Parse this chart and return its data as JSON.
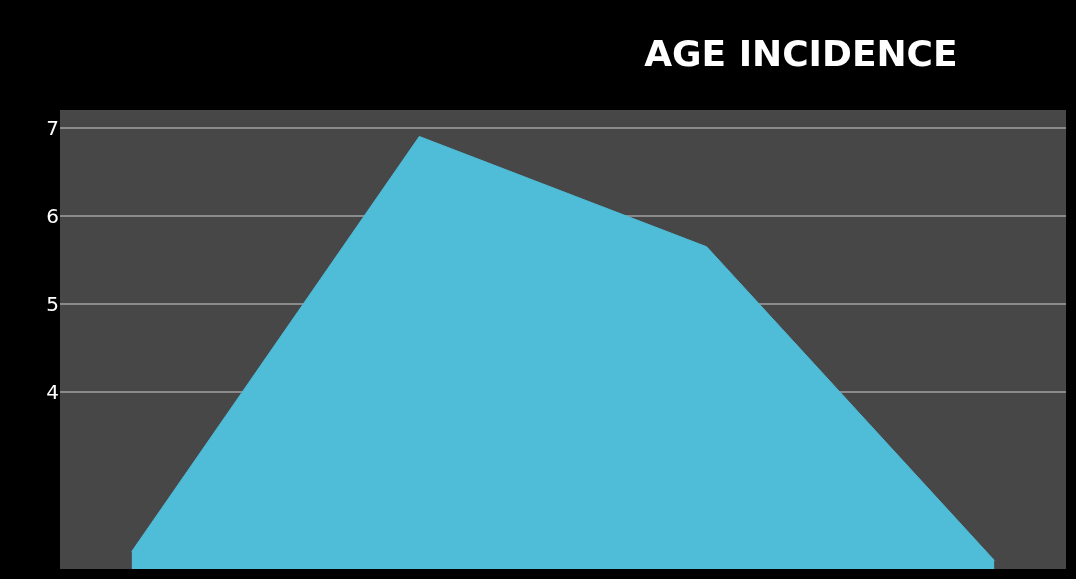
{
  "chart_data": {
    "type": "area",
    "title": "AGE INCIDENCE",
    "categories": [
      null,
      null,
      null,
      null
    ],
    "series": [
      {
        "color": "#4fbcd8",
        "values": [
          2.2,
          6.9,
          5.65,
          2.1
        ]
      }
    ],
    "ylim": [
      2,
      7.2
    ],
    "yticks": [
      4,
      5,
      6,
      7
    ],
    "grid": "y",
    "marker": "none",
    "tick_labels": "y"
  }
}
